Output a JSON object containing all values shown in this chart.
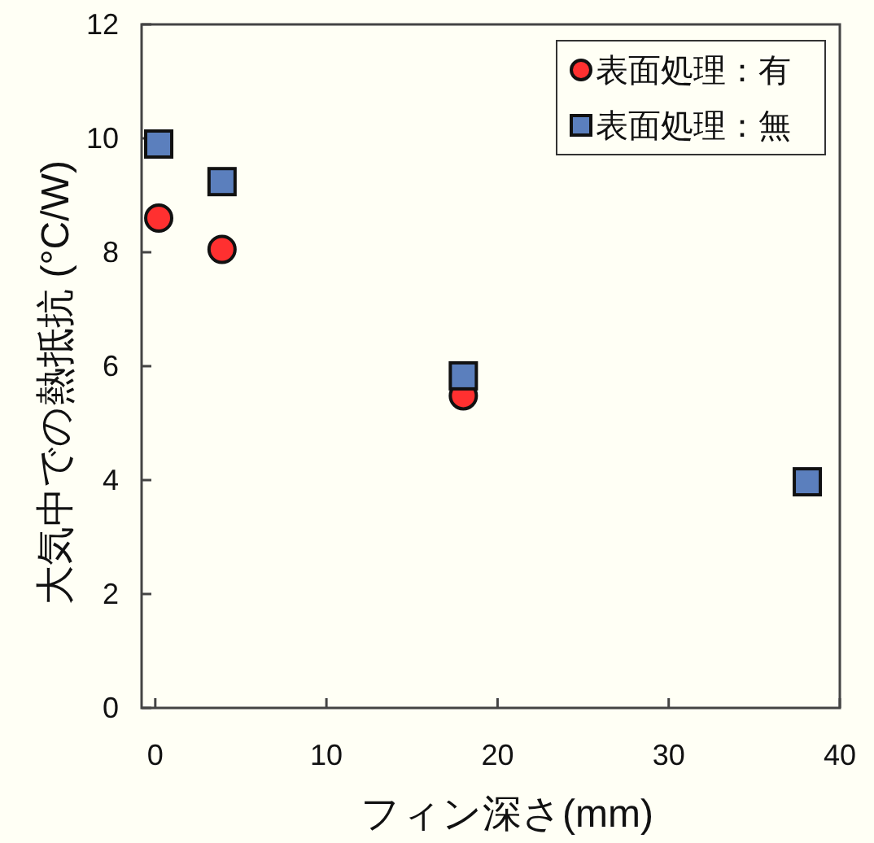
{
  "chart_data": {
    "type": "scatter",
    "xlabel": "フィン深さ(mm)",
    "ylabel": "大気中での熱抵抗 (°C/W)",
    "xlim": [
      -0.8,
      40
    ],
    "ylim": [
      0,
      12
    ],
    "xticks": [
      0,
      10,
      20,
      30,
      40
    ],
    "yticks": [
      0,
      2,
      4,
      6,
      8,
      10,
      12
    ],
    "legend": "top right",
    "series": [
      {
        "name": "表面処理：有",
        "color": "#ff3030",
        "marker": "circle",
        "x": [
          0.2,
          3.9,
          18
        ],
        "values": [
          8.6,
          8.05,
          5.48
        ]
      },
      {
        "name": "表面処理：無",
        "color": "#5b7fbd",
        "marker": "square",
        "x": [
          0.2,
          3.9,
          18,
          38.1
        ],
        "values": [
          9.9,
          9.24,
          5.83,
          3.97
        ]
      }
    ]
  }
}
